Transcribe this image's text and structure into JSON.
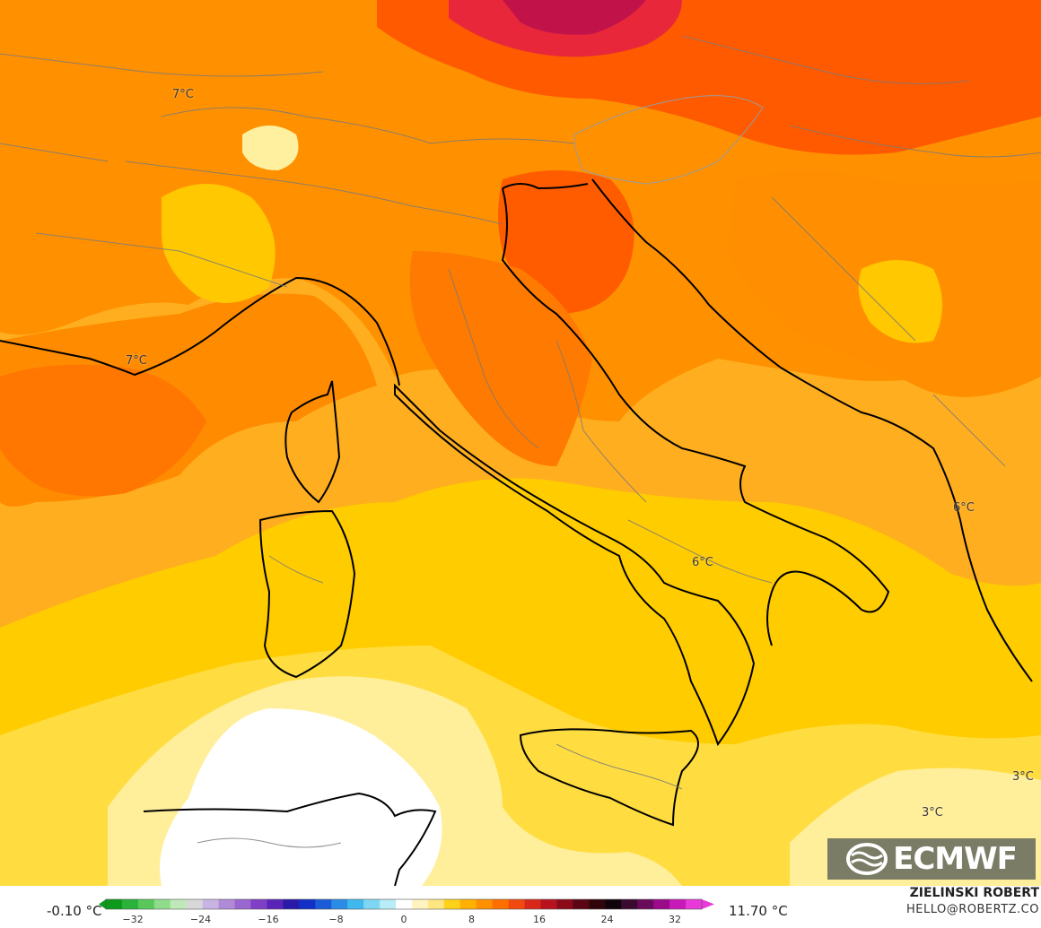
{
  "map": {
    "labels": [
      {
        "id": "label-7c-switzerland",
        "text": "7°C"
      },
      {
        "id": "label-7c-provence",
        "text": "7°C"
      },
      {
        "id": "label-6c-balkans",
        "text": "6°C"
      },
      {
        "id": "label-6c-campania",
        "text": "6°C"
      },
      {
        "id": "label-3c-ionian-east",
        "text": "3°C"
      },
      {
        "id": "label-3c-ionian-south",
        "text": "3°C"
      }
    ]
  },
  "logo": {
    "text": "ECMWF"
  },
  "colorbar": {
    "min_label": "-0.10 °C",
    "max_label": "11.70 °C",
    "ticks": [
      "−32",
      "−24",
      "−16",
      "−8",
      "0",
      "8",
      "16",
      "24",
      "32"
    ],
    "colors": [
      "#0b9a1a",
      "#2ab23a",
      "#58c85a",
      "#8fdc8a",
      "#bfe9b8",
      "#d8d8d8",
      "#c9b3e3",
      "#b08ad6",
      "#9a66cf",
      "#7f3fc6",
      "#5a24b8",
      "#2a1aa8",
      "#1230c6",
      "#1a5cd8",
      "#2a8ce6",
      "#3fb8ee",
      "#7ed6f2",
      "#b8ecf6",
      "#ffffff",
      "#fff3c0",
      "#ffe680",
      "#ffd11a",
      "#ffb000",
      "#ff9000",
      "#ff6f00",
      "#f04a10",
      "#d8281a",
      "#b8121e",
      "#8a0a1a",
      "#5a0614",
      "#300408",
      "#10020a",
      "#3a0a30",
      "#6a0a5a",
      "#9a0a8a",
      "#c81ab8",
      "#e83ad8"
    ]
  },
  "credit": {
    "name": "ZIELINSKI ROBERT",
    "email": "HELLO@ROBERTZ.CO"
  }
}
